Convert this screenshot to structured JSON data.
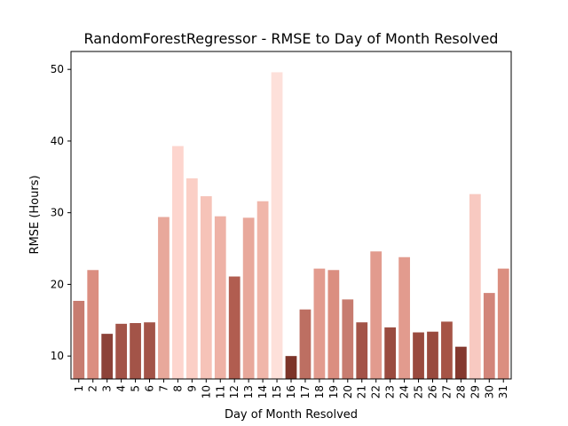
{
  "chart_data": {
    "type": "bar",
    "title": "RandomForestRegressor - RMSE to Day of Month Resolved",
    "xlabel": "Day of Month Resolved",
    "ylabel": "RMSE (Hours)",
    "ylim": [
      6.8,
      52.5
    ],
    "yticks": [
      10,
      20,
      30,
      40,
      50
    ],
    "grid": false,
    "categories": [
      "1",
      "2",
      "3",
      "4",
      "5",
      "6",
      "7",
      "8",
      "9",
      "10",
      "11",
      "12",
      "13",
      "14",
      "15",
      "16",
      "17",
      "18",
      "19",
      "20",
      "21",
      "22",
      "23",
      "24",
      "25",
      "26",
      "27",
      "28",
      "29",
      "30",
      "31"
    ],
    "values": [
      17.7,
      22.0,
      13.1,
      14.5,
      14.6,
      14.7,
      29.4,
      39.3,
      34.8,
      32.3,
      29.5,
      21.1,
      29.3,
      31.6,
      49.6,
      10.0,
      16.5,
      22.2,
      22.0,
      17.9,
      14.7,
      24.6,
      14.0,
      23.8,
      13.3,
      13.4,
      14.8,
      11.3,
      32.6,
      18.8,
      22.2
    ],
    "colors": [
      "#c77c70",
      "#db8e80",
      "#8c4238",
      "#a35448",
      "#a35448",
      "#a35448",
      "#e8a89b",
      "#fdd5ce",
      "#fbcfc6",
      "#f6c3b8",
      "#eeb2a6",
      "#b15d50",
      "#e8a89b",
      "#f0b6aa",
      "#fde0da",
      "#7c3429",
      "#bd6f62",
      "#e29b8e",
      "#db8e80",
      "#c77c70",
      "#a35448",
      "#e29b8e",
      "#9a4b3f",
      "#e29b8e",
      "#994a3e",
      "#994a3e",
      "#a65446",
      "#84392f",
      "#f8c9c1",
      "#d2857a",
      "#db8e80"
    ]
  }
}
